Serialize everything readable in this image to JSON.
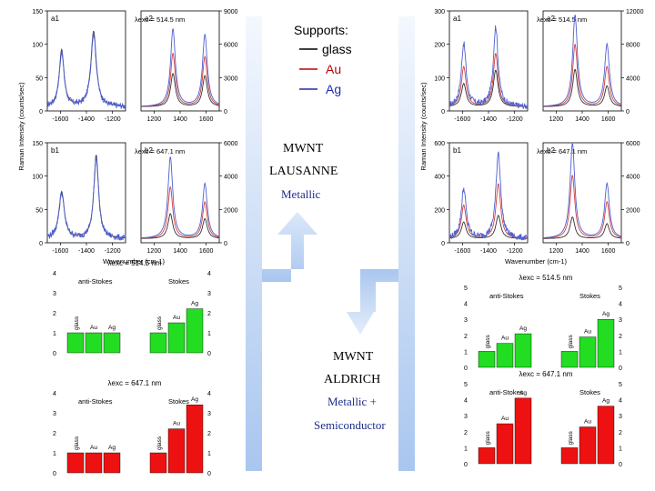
{
  "legend": {
    "title": "Supports:",
    "items": [
      {
        "name": "glass",
        "color": "#000000"
      },
      {
        "name": "Au",
        "color": "#c00000"
      },
      {
        "name": "Ag",
        "color": "#1f2db0"
      }
    ]
  },
  "samples": {
    "left": {
      "line1": "MWNT",
      "line2": "LAUSANNE",
      "line3": "Metallic"
    },
    "right": {
      "line1": "MWNT",
      "line2": "ALDRICH",
      "line3": "Metallic +",
      "line4": "Semiconductor"
    }
  },
  "colors": {
    "glass": "#333333",
    "au": "#d04040",
    "ag": "#5060d0",
    "bar": "#22dd22",
    "barRed": "#ee1111",
    "arrow": "#b8d0f0"
  },
  "chart_data": [
    {
      "id": "spectra-left",
      "type": "line",
      "ylabel": "Raman Intensity (counts/sec)",
      "xlabel": "Wavenumber (cm-1)",
      "panels": [
        {
          "label": "a1",
          "excitation": "λexc = 514.5 nm",
          "xlim": [
            -1700,
            -1100
          ],
          "ylim": [
            0,
            150
          ],
          "xticks": [
            "-1600",
            "-1400",
            "-1200"
          ],
          "yticks": [
            "0",
            "50",
            "100",
            "150"
          ],
          "series": [
            {
              "name": "glass",
              "peaks": [
                [
                  -1590,
                  85,
                  22
                ],
                [
                  -1345,
                  113,
                  25
                ]
              ]
            },
            {
              "name": "Ag",
              "peaks": [
                [
                  -1590,
                  82,
                  22
                ],
                [
                  -1345,
                  110,
                  25
                ]
              ]
            }
          ]
        },
        {
          "label": "a2",
          "excitation": "",
          "xlim": [
            1100,
            1700
          ],
          "ylim": [
            0,
            9000
          ],
          "xticks": [
            "1200",
            "1400",
            "1600"
          ],
          "yticks": [
            "0",
            "3000",
            "6000",
            "9000"
          ],
          "series": [
            {
              "name": "glass",
              "peaks": [
                [
                  1345,
                  3000,
                  22
                ],
                [
                  1590,
                  2800,
                  22
                ]
              ]
            },
            {
              "name": "Au",
              "peaks": [
                [
                  1345,
                  4800,
                  22
                ],
                [
                  1590,
                  4500,
                  22
                ]
              ]
            },
            {
              "name": "Ag",
              "peaks": [
                [
                  1345,
                  7000,
                  22
                ],
                [
                  1590,
                  6500,
                  22
                ]
              ]
            }
          ]
        },
        {
          "label": "b1",
          "excitation": "λexc = 647.1 nm",
          "xlim": [
            -1700,
            -1100
          ],
          "ylim": [
            0,
            150
          ],
          "xticks": [
            "-1600",
            "-1400",
            "-1200"
          ],
          "yticks": [
            "0",
            "50",
            "100",
            "150"
          ],
          "series": [
            {
              "name": "glass",
              "peaks": [
                [
                  -1590,
                  70,
                  25
                ],
                [
                  -1325,
                  125,
                  22
                ]
              ]
            },
            {
              "name": "Ag",
              "peaks": [
                [
                  -1590,
                  68,
                  25
                ],
                [
                  -1325,
                  122,
                  22
                ]
              ]
            }
          ]
        },
        {
          "label": "b2",
          "excitation": "",
          "xlim": [
            1100,
            1700
          ],
          "ylim": [
            0,
            6000
          ],
          "xticks": [
            "1200",
            "1400",
            "1600"
          ],
          "yticks": [
            "0",
            "2000",
            "4000",
            "6000"
          ],
          "series": [
            {
              "name": "glass",
              "peaks": [
                [
                  1325,
                  1500,
                  22
                ],
                [
                  1590,
                  1200,
                  22
                ]
              ]
            },
            {
              "name": "Au",
              "peaks": [
                [
                  1325,
                  3100,
                  22
                ],
                [
                  1590,
                  2200,
                  22
                ]
              ]
            },
            {
              "name": "Ag",
              "peaks": [
                [
                  1325,
                  4900,
                  22
                ],
                [
                  1590,
                  3300,
                  22
                ]
              ]
            }
          ]
        }
      ]
    },
    {
      "id": "spectra-right",
      "type": "line",
      "ylabel": "Raman Intensity (counts/sec)",
      "xlabel": "Wavenumber (cm-1)",
      "panels": [
        {
          "label": "a1",
          "excitation": "λexc = 514.5 nm",
          "xlim": [
            -1700,
            -1100
          ],
          "ylim": [
            0,
            300
          ],
          "xticks": [
            "-1600",
            "-1400",
            "-1200"
          ],
          "yticks": [
            "0",
            "100",
            "200",
            "300"
          ],
          "series": [
            {
              "name": "glass",
              "peaks": [
                [
                  -1590,
                  70,
                  22
                ],
                [
                  -1345,
                  110,
                  22
                ]
              ]
            },
            {
              "name": "Au",
              "peaks": [
                [
                  -1590,
                  120,
                  22
                ],
                [
                  -1345,
                  160,
                  22
                ]
              ]
            },
            {
              "name": "Ag",
              "peaks": [
                [
                  -1590,
                  190,
                  22
                ],
                [
                  -1345,
                  240,
                  22
                ]
              ]
            }
          ]
        },
        {
          "label": "a2",
          "excitation": "",
          "xlim": [
            1100,
            1700
          ],
          "ylim": [
            0,
            12000
          ],
          "xticks": [
            "1200",
            "1400",
            "1600"
          ],
          "yticks": [
            "0",
            "4000",
            "8000",
            "12000"
          ],
          "series": [
            {
              "name": "glass",
              "peaks": [
                [
                  1345,
                  4500,
                  22
                ],
                [
                  1590,
                  2500,
                  22
                ]
              ]
            },
            {
              "name": "Au",
              "peaks": [
                [
                  1345,
                  7500,
                  22
                ],
                [
                  1590,
                  4800,
                  22
                ]
              ]
            },
            {
              "name": "Ag",
              "peaks": [
                [
                  1345,
                  11000,
                  22
                ],
                [
                  1590,
                  7500,
                  22
                ]
              ]
            }
          ]
        },
        {
          "label": "b1",
          "excitation": "λexc = 647.1 nm",
          "xlim": [
            -1700,
            -1100
          ],
          "ylim": [
            0,
            600
          ],
          "xticks": [
            "-1600",
            "-1400",
            "-1200"
          ],
          "yticks": [
            "0",
            "200",
            "400",
            "600"
          ],
          "series": [
            {
              "name": "glass",
              "peaks": [
                [
                  -1590,
                  100,
                  22
                ],
                [
                  -1325,
                  140,
                  22
                ]
              ]
            },
            {
              "name": "Au",
              "peaks": [
                [
                  -1590,
                  200,
                  22
                ],
                [
                  -1325,
                  330,
                  22
                ]
              ]
            },
            {
              "name": "Ag",
              "peaks": [
                [
                  -1590,
                  300,
                  22
                ],
                [
                  -1325,
                  520,
                  22
                ]
              ]
            }
          ]
        },
        {
          "label": "b2",
          "excitation": "",
          "xlim": [
            1100,
            1700
          ],
          "ylim": [
            0,
            6000
          ],
          "xticks": [
            "1200",
            "1400",
            "1600"
          ],
          "yticks": [
            "0",
            "2000",
            "4000",
            "6000"
          ],
          "series": [
            {
              "name": "glass",
              "peaks": [
                [
                  1325,
                  1300,
                  22
                ],
                [
                  1590,
                  900,
                  22
                ]
              ]
            },
            {
              "name": "Au",
              "peaks": [
                [
                  1325,
                  3800,
                  22
                ],
                [
                  1590,
                  2200,
                  22
                ]
              ]
            },
            {
              "name": "Ag",
              "peaks": [
                [
                  1325,
                  5700,
                  22
                ],
                [
                  1590,
                  3300,
                  22
                ]
              ]
            }
          ]
        }
      ]
    },
    {
      "id": "bars-left-514",
      "type": "bar",
      "title": "λexc = 514.5 nm",
      "color": "green",
      "ylim": [
        0,
        4
      ],
      "yticks": [
        "0",
        "1",
        "2",
        "3",
        "4"
      ],
      "groups": [
        {
          "label": "anti-Stokes",
          "categories": [
            "glass",
            "Au",
            "Ag"
          ],
          "values": [
            1,
            1,
            1
          ]
        },
        {
          "label": "Stokes",
          "categories": [
            "glass",
            "Au",
            "Ag"
          ],
          "values": [
            1,
            1.5,
            2.2
          ]
        }
      ]
    },
    {
      "id": "bars-left-647",
      "type": "bar",
      "title": "λexc = 647.1 nm",
      "color": "red",
      "ylim": [
        0,
        4
      ],
      "yticks": [
        "0",
        "1",
        "2",
        "3",
        "4"
      ],
      "groups": [
        {
          "label": "anti-Stokes",
          "categories": [
            "glass",
            "Au",
            "Ag"
          ],
          "values": [
            1,
            1,
            1
          ]
        },
        {
          "label": "Stokes",
          "categories": [
            "glass",
            "Au",
            "Ag"
          ],
          "values": [
            1,
            2.2,
            3.4
          ]
        }
      ]
    },
    {
      "id": "bars-right-514",
      "type": "bar",
      "title": "λexc = 514.5 nm",
      "color": "green",
      "ylim": [
        0,
        5
      ],
      "yticks": [
        "0",
        "1",
        "2",
        "3",
        "4",
        "5"
      ],
      "groups": [
        {
          "label": "anti-Stokes",
          "categories": [
            "glass",
            "Au",
            "Ag"
          ],
          "values": [
            1,
            1.5,
            2.1
          ]
        },
        {
          "label": "Stokes",
          "categories": [
            "glass",
            "Au",
            "Ag"
          ],
          "values": [
            1,
            1.9,
            3
          ]
        }
      ]
    },
    {
      "id": "bars-right-647",
      "type": "bar",
      "title": "λexc = 647.1 nm",
      "color": "red",
      "ylim": [
        0,
        5
      ],
      "yticks": [
        "0",
        "1",
        "2",
        "3",
        "4",
        "5"
      ],
      "groups": [
        {
          "label": "anti-Stokes",
          "categories": [
            "glass",
            "Au",
            "Ag"
          ],
          "values": [
            1,
            2.5,
            4.1
          ]
        },
        {
          "label": "Stokes",
          "categories": [
            "glass",
            "Au",
            "Ag"
          ],
          "values": [
            1,
            2.3,
            3.6
          ]
        }
      ]
    }
  ]
}
